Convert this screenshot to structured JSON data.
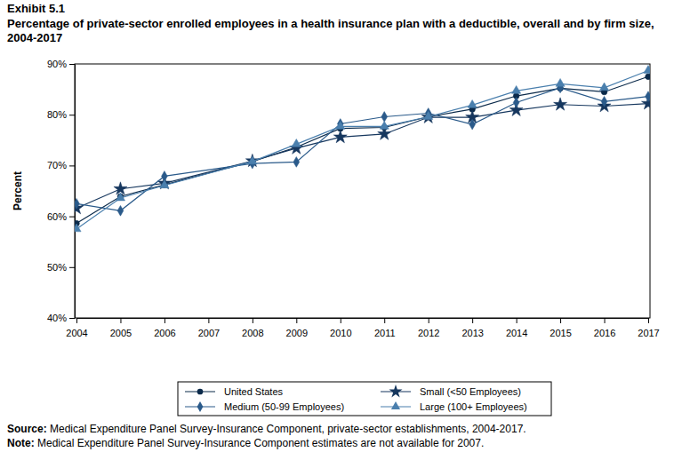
{
  "chart_data": {
    "type": "line",
    "title": "Exhibit 5.1",
    "subtitle": "Percentage of private-sector enrolled employees in a health insurance plan with a deductible, overall and by firm size, 2004-2017",
    "y_label": "Percent",
    "source": "Source: Medical Expenditure Panel Survey-Insurance Component, private-sector establishments, 2004-2017.",
    "note": "Note: Medical Expenditure Panel Survey-Insurance Component estimates are not available for 2007.",
    "x": [
      2004,
      2005,
      2006,
      2008,
      2009,
      2010,
      2011,
      2012,
      2013,
      2014,
      2015,
      2016,
      2017
    ],
    "xlim": [
      2004,
      2017
    ],
    "xticks": [
      2004,
      2005,
      2006,
      2007,
      2008,
      2009,
      2010,
      2011,
      2012,
      2013,
      2014,
      2015,
      2016,
      2017
    ],
    "ylim": [
      40,
      90
    ],
    "yticks": [
      {
        "value": 40,
        "label": "40%"
      },
      {
        "value": 50,
        "label": "50%"
      },
      {
        "value": 60,
        "label": "60%"
      },
      {
        "value": 70,
        "label": "70%"
      },
      {
        "value": 80,
        "label": "80%"
      },
      {
        "value": 90,
        "label": "90%"
      }
    ],
    "grid": false,
    "legend": "bottom",
    "series": [
      {
        "name": "United States",
        "color": "#0b2a4a",
        "marker": "circle",
        "values": [
          58.6,
          63.9,
          66.2,
          70.8,
          73.6,
          77.3,
          77.5,
          79.6,
          81.1,
          83.7,
          85.2,
          84.5,
          87.5
        ]
      },
      {
        "name": "Small (<50 Employees)",
        "color": "#16375e",
        "marker": "star",
        "values": [
          61.6,
          65.4,
          66.5,
          70.9,
          73.4,
          75.6,
          76.2,
          79.5,
          79.5,
          80.9,
          82.0,
          81.7,
          82.2
        ]
      },
      {
        "name": "Medium (50-99 Employees)",
        "color": "#2a5a8a",
        "marker": "diamond",
        "values": [
          62.5,
          61.1,
          67.9,
          70.4,
          70.7,
          78.2,
          79.6,
          80.3,
          78.1,
          82.4,
          85.3,
          82.6,
          83.6
        ]
      },
      {
        "name": "Large (100+ Employees)",
        "color": "#4a7fad",
        "marker": "triangle",
        "values": [
          57.5,
          63.6,
          66.1,
          70.8,
          74.2,
          77.7,
          77.7,
          79.6,
          81.9,
          84.7,
          86.1,
          85.3,
          88.7
        ]
      }
    ]
  }
}
